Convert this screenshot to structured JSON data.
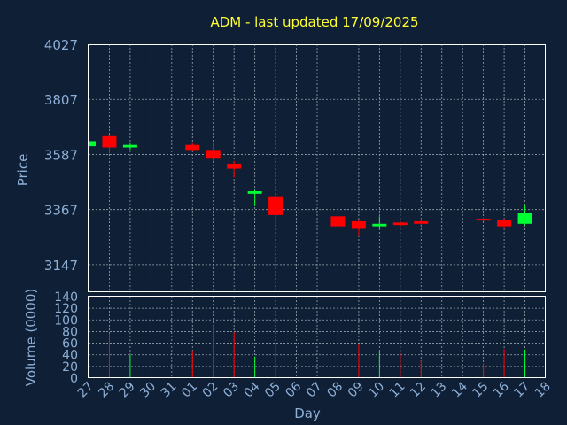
{
  "chart_data": {
    "type": "candlestick",
    "title": "ADM - last updated 17/09/2025",
    "colors": {
      "background": "#0f1f35",
      "up": "#00ff33",
      "down": "#ff0000",
      "title": "#ffff33",
      "labels": "#8eafd6",
      "grid": "#9aa3ad"
    },
    "grid": true,
    "price_panel": {
      "ylabel": "Price",
      "ylim": [
        3037,
        4027
      ],
      "yticks": [
        3147,
        3367,
        3587,
        3807,
        4027
      ]
    },
    "volume_panel": {
      "ylabel": "Volume (0000)",
      "ylim": [
        0,
        140
      ],
      "yticks": [
        0,
        20,
        40,
        60,
        80,
        100,
        120,
        140
      ]
    },
    "x_axis": {
      "xlabel": "Day",
      "tick_labels": [
        "27",
        "28",
        "29",
        "30",
        "31",
        "01",
        "02",
        "03",
        "04",
        "05",
        "06",
        "07",
        "08",
        "09",
        "10",
        "11",
        "12",
        "13",
        "14",
        "15",
        "16",
        "17",
        "18"
      ]
    },
    "candles": [
      {
        "day": "27",
        "open": 3620,
        "close": 3640,
        "high": 3640,
        "low": 3620,
        "volume": 0
      },
      {
        "day": "28",
        "open": 3660,
        "close": 3615,
        "high": 3665,
        "low": 3590,
        "volume": 77
      },
      {
        "day": "29",
        "open": 3615,
        "close": 3625,
        "high": 3635,
        "low": 3605,
        "volume": 40
      },
      {
        "day": "01",
        "open": 3625,
        "close": 3605,
        "high": 3635,
        "low": 3600,
        "volume": 47
      },
      {
        "day": "02",
        "open": 3605,
        "close": 3570,
        "high": 3630,
        "low": 3560,
        "volume": 92
      },
      {
        "day": "03",
        "open": 3550,
        "close": 3530,
        "high": 3560,
        "low": 3495,
        "volume": 79
      },
      {
        "day": "04",
        "open": 3430,
        "close": 3440,
        "high": 3445,
        "low": 3380,
        "volume": 37
      },
      {
        "day": "05",
        "open": 3420,
        "close": 3345,
        "high": 3425,
        "low": 3305,
        "volume": 61
      },
      {
        "day": "08",
        "open": 3340,
        "close": 3300,
        "high": 3445,
        "low": 3295,
        "volume": 140
      },
      {
        "day": "09",
        "open": 3320,
        "close": 3290,
        "high": 3325,
        "low": 3260,
        "volume": 58
      },
      {
        "day": "10",
        "open": 3300,
        "close": 3310,
        "high": 3340,
        "low": 3290,
        "volume": 47
      },
      {
        "day": "11",
        "open": 3315,
        "close": 3305,
        "high": 3320,
        "low": 3300,
        "volume": 42
      },
      {
        "day": "12",
        "open": 3320,
        "close": 3310,
        "high": 3330,
        "low": 3305,
        "volume": 30
      },
      {
        "day": "15",
        "open": 3330,
        "close": 3325,
        "high": 3335,
        "low": 3320,
        "volume": 25
      },
      {
        "day": "16",
        "open": 3325,
        "close": 3300,
        "high": 3330,
        "low": 3290,
        "volume": 50
      },
      {
        "day": "17",
        "open": 3310,
        "close": 3355,
        "high": 3385,
        "low": 3305,
        "volume": 49
      }
    ]
  }
}
